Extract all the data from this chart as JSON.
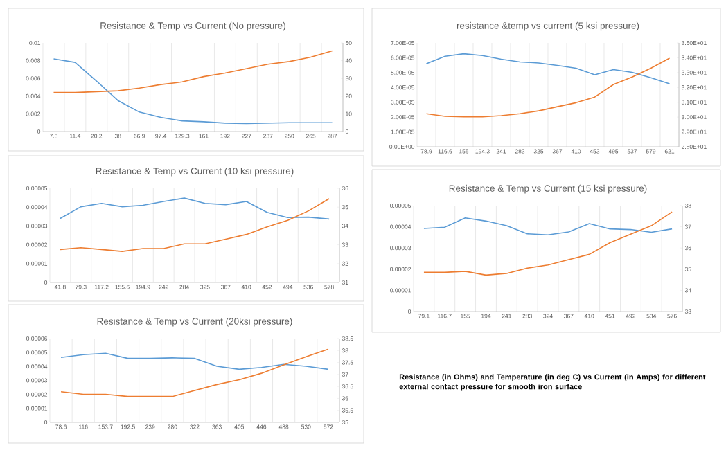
{
  "chart_data": [
    {
      "type": "line",
      "title": "Resistance & Temp vs Current (No pressure)",
      "grid": "x",
      "categories": [
        "7.3",
        "11.4",
        "20.2",
        "38",
        "66.9",
        "97.4",
        "129.3",
        "161",
        "192",
        "227",
        "237",
        "250",
        "265",
        "287"
      ],
      "series": [
        {
          "color": "#5b9bd5",
          "values": [
            0.0082,
            0.0078,
            0.0057,
            0.0035,
            0.0022,
            0.0016,
            0.0012,
            0.0011,
            0.00095,
            0.0009,
            0.00095,
            0.001,
            0.001,
            0.001
          ]
        },
        {
          "color": "#ed7d31",
          "axis": "y2",
          "values": [
            22,
            22,
            22.5,
            23,
            24.5,
            26.5,
            28,
            31,
            33,
            35.5,
            38,
            39.5,
            42,
            45.5
          ]
        }
      ],
      "ylim": [
        0,
        0.01
      ],
      "yticks": [
        0,
        0.002,
        0.004,
        0.006,
        0.008,
        0.01
      ],
      "y2lim": [
        0,
        50
      ],
      "y2ticks": [
        0,
        10,
        20,
        30,
        40,
        50
      ]
    },
    {
      "type": "line",
      "title": "resistance &temp vs current (5 ksi pressure)",
      "grid": "x",
      "categories": [
        "78.9",
        "116.6",
        "155",
        "194.3",
        "241",
        "283",
        "325",
        "367",
        "410",
        "453",
        "495",
        "537",
        "579",
        "621"
      ],
      "series": [
        {
          "color": "#5b9bd5",
          "values": [
            5.6e-05,
            6.1e-05,
            6.27e-05,
            6.15e-05,
            5.9e-05,
            5.72e-05,
            5.65e-05,
            5.48e-05,
            5.3e-05,
            4.85e-05,
            5.2e-05,
            5.02e-05,
            4.65e-05,
            4.25e-05
          ]
        },
        {
          "color": "#ed7d31",
          "axis": "y2",
          "values": [
            30.23,
            30.05,
            30.02,
            30.02,
            30.1,
            30.23,
            30.42,
            30.7,
            30.97,
            31.35,
            32.2,
            32.7,
            33.3,
            33.97
          ]
        }
      ],
      "ylim": [
        0,
        7e-05
      ],
      "yticks": [
        {
          "value": 0,
          "label": "0.00E+00"
        },
        {
          "value": 1e-05,
          "label": "1.00E-05"
        },
        {
          "value": 2e-05,
          "label": "2.00E-05"
        },
        {
          "value": 3e-05,
          "label": "3.00E-05"
        },
        {
          "value": 4e-05,
          "label": "4.00E-05"
        },
        {
          "value": 5e-05,
          "label": "5.00E-05"
        },
        {
          "value": 6e-05,
          "label": "6.00E-05"
        },
        {
          "value": 7e-05,
          "label": "7.00E-05"
        }
      ],
      "y2lim": [
        28,
        35
      ],
      "y2ticks": [
        {
          "value": 28,
          "label": "2.80E+01"
        },
        {
          "value": 29,
          "label": "2.90E+01"
        },
        {
          "value": 30,
          "label": "3.00E+01"
        },
        {
          "value": 31,
          "label": "3.10E+01"
        },
        {
          "value": 32,
          "label": "3.20E+01"
        },
        {
          "value": 33,
          "label": "3.30E+01"
        },
        {
          "value": 34,
          "label": "3.40E+01"
        },
        {
          "value": 35,
          "label": "3.50E+01"
        }
      ]
    },
    {
      "type": "line",
      "title": "Resistance & Temp vs Current (10 ksi pressure)",
      "grid": "x",
      "categories": [
        "41.8",
        "79.3",
        "117.2",
        "155.6",
        "194.9",
        "242",
        "284",
        "325",
        "367",
        "410",
        "452",
        "494",
        "536",
        "578"
      ],
      "series": [
        {
          "color": "#5b9bd5",
          "values": [
            3.4e-05,
            4.02e-05,
            4.2e-05,
            4.02e-05,
            4.1e-05,
            4.3e-05,
            4.48e-05,
            4.2e-05,
            4.13e-05,
            4.3e-05,
            3.72e-05,
            3.45e-05,
            3.47e-05,
            3.37e-05
          ]
        },
        {
          "color": "#ed7d31",
          "axis": "y2",
          "values": [
            32.75,
            32.85,
            32.75,
            32.65,
            32.8,
            32.8,
            33.05,
            33.05,
            33.3,
            33.55,
            33.95,
            34.3,
            34.8,
            35.45
          ]
        }
      ],
      "ylim": [
        0,
        5e-05
      ],
      "yticks": [
        0,
        {
          "value": 1e-05,
          "label": "0.00001"
        },
        {
          "value": 2e-05,
          "label": "0.00002"
        },
        {
          "value": 3e-05,
          "label": "0.00003"
        },
        {
          "value": 4e-05,
          "label": "0.00004"
        },
        {
          "value": 5e-05,
          "label": "0.00005"
        }
      ],
      "y2lim": [
        31,
        36
      ],
      "y2ticks": [
        31,
        32,
        33,
        34,
        35,
        36
      ]
    },
    {
      "type": "line",
      "title": "Resistance & Temp vs  Current (15 ksi pressure)",
      "grid": "x",
      "categories": [
        "79.1",
        "116.7",
        "155",
        "194",
        "241",
        "283",
        "324",
        "367",
        "410",
        "451",
        "492",
        "534",
        "576"
      ],
      "series": [
        {
          "color": "#5b9bd5",
          "values": [
            3.92e-05,
            3.98e-05,
            4.42e-05,
            4.27e-05,
            4.05e-05,
            3.67e-05,
            3.62e-05,
            3.76e-05,
            4.15e-05,
            3.9e-05,
            3.87e-05,
            3.74e-05,
            3.9e-05
          ]
        },
        {
          "color": "#ed7d31",
          "axis": "y2",
          "values": [
            34.85,
            34.85,
            34.9,
            34.72,
            34.8,
            35.05,
            35.2,
            35.45,
            35.7,
            36.25,
            36.65,
            37.05,
            37.7
          ]
        }
      ],
      "ylim": [
        0,
        5e-05
      ],
      "yticks": [
        0,
        {
          "value": 1e-05,
          "label": "0.00001"
        },
        {
          "value": 2e-05,
          "label": "0.00002"
        },
        {
          "value": 3e-05,
          "label": "0.00003"
        },
        {
          "value": 4e-05,
          "label": "0.00004"
        },
        {
          "value": 5e-05,
          "label": "0.00005"
        }
      ],
      "y2lim": [
        33,
        38
      ],
      "y2ticks": [
        33,
        34,
        35,
        36,
        37,
        38
      ]
    },
    {
      "type": "line",
      "title": "Resistance & Temp  vs Current (20ksi pressure)",
      "grid": "x",
      "categories": [
        "78.6",
        "116",
        "153.7",
        "192.5",
        "239",
        "280",
        "322",
        "363",
        "405",
        "446",
        "488",
        "530",
        "572"
      ],
      "series": [
        {
          "color": "#5b9bd5",
          "values": [
            4.65e-05,
            4.85e-05,
            4.95e-05,
            4.58e-05,
            4.58e-05,
            4.62e-05,
            4.58e-05,
            4.02e-05,
            3.8e-05,
            3.93e-05,
            4.15e-05,
            4.02e-05,
            3.8e-05
          ]
        },
        {
          "color": "#ed7d31",
          "axis": "y2",
          "values": [
            36.28,
            36.17,
            36.17,
            36.08,
            36.08,
            36.08,
            36.33,
            36.58,
            36.78,
            37.05,
            37.4,
            37.74,
            38.06
          ]
        }
      ],
      "ylim": [
        0,
        6e-05
      ],
      "yticks": [
        0,
        {
          "value": 1e-05,
          "label": "0.00001"
        },
        {
          "value": 2e-05,
          "label": "0.00002"
        },
        {
          "value": 3e-05,
          "label": "0.00003"
        },
        {
          "value": 4e-05,
          "label": "0.00004"
        },
        {
          "value": 5e-05,
          "label": "0.00005"
        },
        {
          "value": 6e-05,
          "label": "0.00006"
        }
      ],
      "y2lim": [
        35,
        38.5
      ],
      "y2ticks": [
        35,
        35.5,
        36,
        36.5,
        37,
        37.5,
        38,
        38.5
      ]
    },
    {
      "type": "other",
      "annotations": [
        "Resistance (in Ohms) and Temperature (in deg C) vs Current (in Amps) for different external contact pressure for smooth iron surface"
      ]
    }
  ]
}
